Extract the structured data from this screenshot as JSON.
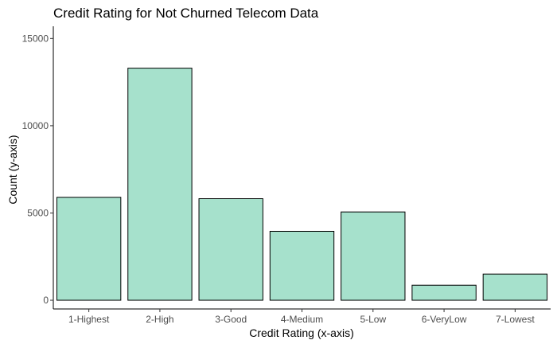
{
  "chart_data": {
    "type": "bar",
    "title": "Credit Rating for Not Churned Telecom Data",
    "xlabel": "Credit Rating (x-axis)",
    "ylabel": "Count (y-axis)",
    "categories": [
      "1-Highest",
      "2-High",
      "3-Good",
      "4-Medium",
      "5-Low",
      "6-VeryLow",
      "7-Lowest"
    ],
    "values": [
      5900,
      13300,
      5820,
      3950,
      5060,
      860,
      1500
    ],
    "ylim": [
      -500,
      15700
    ],
    "yticks": [
      0,
      5000,
      10000,
      15000
    ],
    "ytick_labels": [
      "0",
      "5000",
      "10000",
      "15000"
    ],
    "grid": false,
    "bar_color": "#a6e1cc",
    "bar_border_color": "#000000"
  }
}
